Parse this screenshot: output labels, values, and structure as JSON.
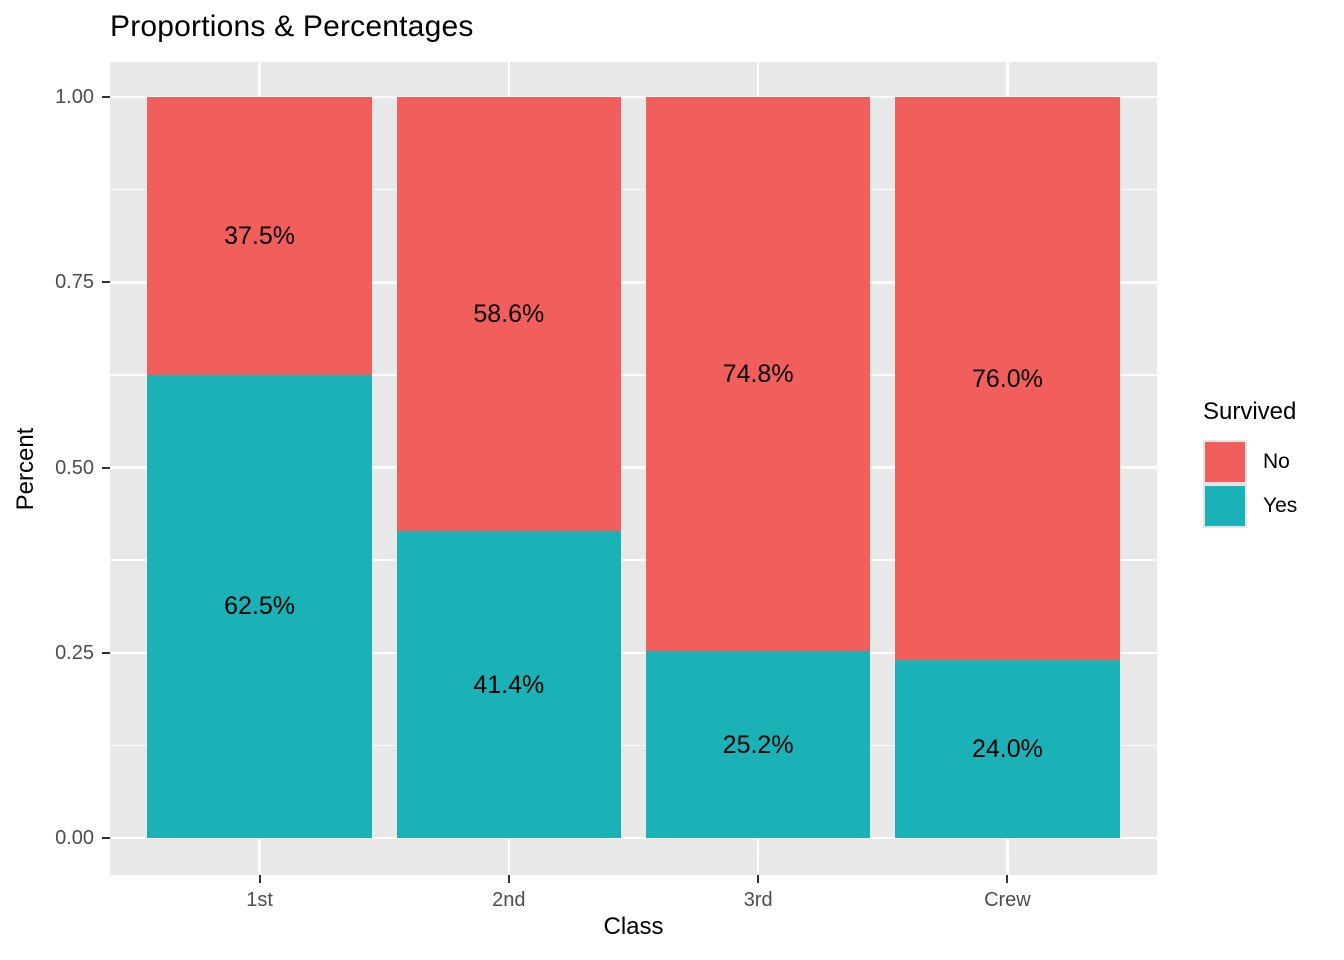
{
  "chart_data": {
    "type": "bar",
    "stacked": true,
    "title": "Proportions & Percentages",
    "xlabel": "Class",
    "ylabel": "Percent",
    "categories": [
      "1st",
      "2nd",
      "3rd",
      "Crew"
    ],
    "series": [
      {
        "name": "Yes",
        "color": "#1AB2B6",
        "values": [
          0.625,
          0.414,
          0.252,
          0.24
        ],
        "labels": [
          "62.5%",
          "41.4%",
          "25.2%",
          "24.0%"
        ]
      },
      {
        "name": "No",
        "color": "#F25E5B",
        "values": [
          0.375,
          0.586,
          0.748,
          0.76
        ],
        "labels": [
          "37.5%",
          "58.6%",
          "74.8%",
          "76.0%"
        ]
      }
    ],
    "ylim": [
      0,
      1
    ],
    "y_major_ticks": [
      {
        "value": 0.0,
        "label": "0.00"
      },
      {
        "value": 0.25,
        "label": "0.25"
      },
      {
        "value": 0.5,
        "label": "0.50"
      },
      {
        "value": 0.75,
        "label": "0.75"
      },
      {
        "value": 1.0,
        "label": "1.00"
      }
    ],
    "y_minor_ticks": [
      0.125,
      0.375,
      0.625,
      0.875
    ],
    "grid": true,
    "legend": {
      "position": "right",
      "title": "Survived",
      "entries": [
        {
          "label": "No",
          "color": "#F25E5B"
        },
        {
          "label": "Yes",
          "color": "#1AB2B6"
        }
      ]
    },
    "colors": {
      "panel_background": "#E8E8E8",
      "grid_color": "#FFFFFF",
      "axis_text": "#4d4d4d",
      "tick_mark": "#333333",
      "bar_label_text": "#000000"
    }
  }
}
